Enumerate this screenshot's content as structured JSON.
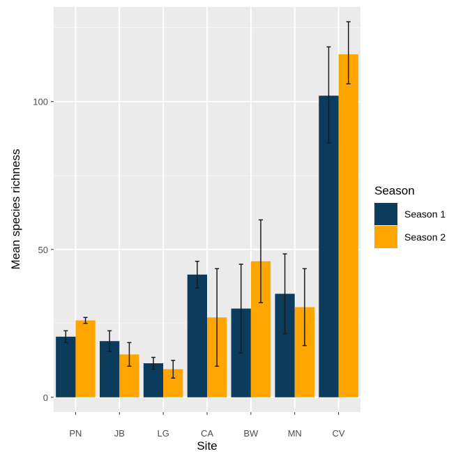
{
  "chart_data": {
    "type": "bar",
    "xlabel": "Site",
    "ylabel": "Mean species richness",
    "categories": [
      "PN",
      "JB",
      "LG",
      "CA",
      "BW",
      "MN",
      "CV"
    ],
    "ylim": [
      -5,
      132
    ],
    "yticks": [
      0,
      50,
      100
    ],
    "grid": true,
    "legend": {
      "title": "Season",
      "position": "right"
    },
    "series": [
      {
        "name": "Season 1",
        "color": "#0b3c5d",
        "values": [
          20.5,
          19,
          11.5,
          41.5,
          30,
          35,
          102
        ],
        "err_low": [
          18.5,
          15.5,
          9.5,
          37,
          15,
          21.5,
          86
        ],
        "err_high": [
          22.5,
          22.5,
          13.5,
          46,
          45,
          48.5,
          118.5
        ]
      },
      {
        "name": "Season 2",
        "color": "#ffa500",
        "values": [
          26,
          14.5,
          9.5,
          27,
          46,
          30.5,
          116
        ],
        "err_low": [
          25,
          10.5,
          6.5,
          10.5,
          32,
          17.5,
          106
        ],
        "err_high": [
          27,
          18.5,
          12.5,
          43.5,
          60,
          43.5,
          127
        ]
      }
    ]
  }
}
